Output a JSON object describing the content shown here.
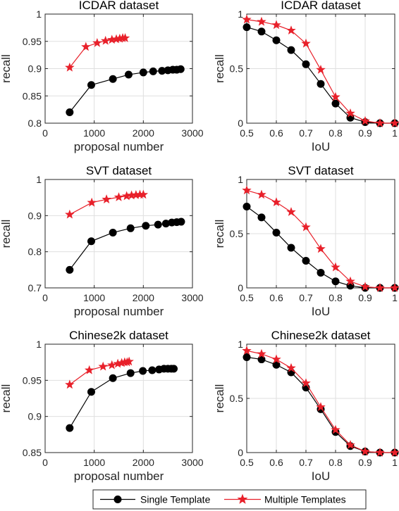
{
  "chart_data": [
    {
      "type": "line",
      "title": "ICDAR dataset",
      "xlabel": "proposal number",
      "ylabel": "recall",
      "xlim": [
        0,
        3000
      ],
      "ylim": [
        0.8,
        1.0
      ],
      "xticks": [
        0,
        1000,
        2000,
        3000
      ],
      "yticks": [
        0.8,
        0.85,
        0.9,
        0.95,
        1.0
      ],
      "xtick_labels": [
        "0",
        "1000",
        "2000",
        "3000"
      ],
      "ytick_labels": [
        "0.8",
        "0.85",
        "0.9",
        "0.95",
        "1"
      ],
      "grid": true,
      "series": [
        {
          "name": "Single Template",
          "color": "#000000",
          "marker": "circle",
          "x": [
            500,
            940,
            1380,
            1700,
            2000,
            2200,
            2380,
            2500,
            2600,
            2680,
            2760
          ],
          "y": [
            0.82,
            0.87,
            0.881,
            0.889,
            0.893,
            0.895,
            0.896,
            0.897,
            0.898,
            0.898,
            0.899
          ]
        },
        {
          "name": "Multiple Templates",
          "color": "#e8202a",
          "marker": "star",
          "x": [
            500,
            830,
            1060,
            1230,
            1360,
            1450,
            1520,
            1580,
            1630
          ],
          "y": [
            0.902,
            0.94,
            0.947,
            0.951,
            0.953,
            0.954,
            0.955,
            0.956,
            0.956
          ]
        }
      ]
    },
    {
      "type": "line",
      "title": "ICDAR dataset",
      "xlabel": "IoU",
      "ylabel": "recall",
      "xlim": [
        0.5,
        1.0
      ],
      "ylim": [
        0,
        1
      ],
      "xticks": [
        0.5,
        0.6,
        0.7,
        0.8,
        0.9,
        1.0
      ],
      "yticks": [
        0,
        0.5,
        1
      ],
      "xtick_labels": [
        "0.5",
        "0.6",
        "0.7",
        "0.8",
        "0.9",
        "1"
      ],
      "ytick_labels": [
        "0",
        "0.5",
        "1"
      ],
      "grid": true,
      "series": [
        {
          "name": "Single Template",
          "color": "#000000",
          "marker": "circle",
          "x": [
            0.5,
            0.55,
            0.6,
            0.65,
            0.7,
            0.75,
            0.8,
            0.85,
            0.9,
            0.95,
            1.0
          ],
          "y": [
            0.88,
            0.84,
            0.76,
            0.67,
            0.54,
            0.36,
            0.18,
            0.05,
            0.01,
            0.0,
            0.0
          ]
        },
        {
          "name": "Multiple Templates",
          "color": "#e8202a",
          "marker": "star",
          "x": [
            0.5,
            0.55,
            0.6,
            0.65,
            0.7,
            0.75,
            0.8,
            0.85,
            0.9,
            0.95,
            1.0
          ],
          "y": [
            0.95,
            0.93,
            0.9,
            0.85,
            0.73,
            0.49,
            0.24,
            0.09,
            0.02,
            0.0,
            0.0
          ]
        }
      ]
    },
    {
      "type": "line",
      "title": "SVT dataset",
      "xlabel": "proposal number",
      "ylabel": "recall",
      "xlim": [
        0,
        3000
      ],
      "ylim": [
        0.7,
        1.0
      ],
      "xticks": [
        0,
        1000,
        2000,
        3000
      ],
      "yticks": [
        0.7,
        0.8,
        0.9,
        1.0
      ],
      "xtick_labels": [
        "0",
        "1000",
        "2000",
        "3000"
      ],
      "ytick_labels": [
        "0.7",
        "0.8",
        "0.9",
        "1"
      ],
      "grid": true,
      "series": [
        {
          "name": "Single Template",
          "color": "#000000",
          "marker": "circle",
          "x": [
            500,
            940,
            1380,
            1740,
            2050,
            2300,
            2460,
            2580,
            2680,
            2770
          ],
          "y": [
            0.75,
            0.829,
            0.853,
            0.865,
            0.872,
            0.875,
            0.878,
            0.881,
            0.882,
            0.883
          ]
        },
        {
          "name": "Multiple Templates",
          "color": "#e8202a",
          "marker": "star",
          "x": [
            500,
            950,
            1250,
            1500,
            1660,
            1760,
            1850,
            1930,
            2000
          ],
          "y": [
            0.903,
            0.936,
            0.945,
            0.951,
            0.954,
            0.956,
            0.957,
            0.958,
            0.958
          ]
        }
      ]
    },
    {
      "type": "line",
      "title": "SVT dataset",
      "xlabel": "IoU",
      "ylabel": "recall",
      "xlim": [
        0.5,
        1.0
      ],
      "ylim": [
        0,
        1
      ],
      "xticks": [
        0.5,
        0.6,
        0.7,
        0.8,
        0.9,
        1.0
      ],
      "yticks": [
        0,
        0.5,
        1
      ],
      "xtick_labels": [
        "0.5",
        "0.6",
        "0.7",
        "0.8",
        "0.9",
        "1"
      ],
      "ytick_labels": [
        "0",
        "0.5",
        "1"
      ],
      "grid": true,
      "series": [
        {
          "name": "Single Template",
          "color": "#000000",
          "marker": "circle",
          "x": [
            0.5,
            0.55,
            0.6,
            0.65,
            0.7,
            0.75,
            0.8,
            0.85,
            0.9,
            0.95,
            1.0
          ],
          "y": [
            0.75,
            0.65,
            0.51,
            0.37,
            0.25,
            0.14,
            0.06,
            0.02,
            0.0,
            0.0,
            0.0
          ]
        },
        {
          "name": "Multiple Templates",
          "color": "#e8202a",
          "marker": "star",
          "x": [
            0.5,
            0.55,
            0.6,
            0.65,
            0.7,
            0.75,
            0.8,
            0.85,
            0.9,
            0.95,
            1.0
          ],
          "y": [
            0.9,
            0.86,
            0.79,
            0.7,
            0.56,
            0.36,
            0.19,
            0.06,
            0.01,
            0.0,
            0.0
          ]
        }
      ]
    },
    {
      "type": "line",
      "title": "Chinese2k dataset",
      "xlabel": "proposal number",
      "ylabel": "recall",
      "xlim": [
        0,
        3000
      ],
      "ylim": [
        0.85,
        1.0
      ],
      "xticks": [
        0,
        1000,
        2000,
        3000
      ],
      "yticks": [
        0.85,
        0.9,
        0.95,
        1.0
      ],
      "xtick_labels": [
        "0",
        "1000",
        "2000",
        "3000"
      ],
      "ytick_labels": [
        "0.85",
        "0.9",
        "0.95",
        "1"
      ],
      "grid": true,
      "series": [
        {
          "name": "Single Template",
          "color": "#000000",
          "marker": "circle",
          "x": [
            500,
            940,
            1380,
            1740,
            1990,
            2180,
            2320,
            2420,
            2500,
            2570,
            2620
          ],
          "y": [
            0.884,
            0.934,
            0.953,
            0.96,
            0.963,
            0.964,
            0.965,
            0.966,
            0.966,
            0.966,
            0.966
          ]
        },
        {
          "name": "Multiple Templates",
          "color": "#e8202a",
          "marker": "star",
          "x": [
            500,
            900,
            1180,
            1360,
            1480,
            1560,
            1620,
            1670,
            1710
          ],
          "y": [
            0.944,
            0.964,
            0.969,
            0.971,
            0.973,
            0.974,
            0.975,
            0.975,
            0.976
          ]
        }
      ]
    },
    {
      "type": "line",
      "title": "Chinese2k dataset",
      "xlabel": "IoU",
      "ylabel": "recall",
      "xlim": [
        0.5,
        1.0
      ],
      "ylim": [
        0,
        1
      ],
      "xticks": [
        0.5,
        0.6,
        0.7,
        0.8,
        0.9,
        1.0
      ],
      "yticks": [
        0,
        0.5,
        1
      ],
      "xtick_labels": [
        "0.5",
        "0.6",
        "0.7",
        "0.8",
        "0.9",
        "1"
      ],
      "ytick_labels": [
        "0",
        "0.5",
        "1"
      ],
      "grid": true,
      "series": [
        {
          "name": "Single Template",
          "color": "#000000",
          "marker": "circle",
          "x": [
            0.5,
            0.55,
            0.6,
            0.65,
            0.7,
            0.75,
            0.8,
            0.85,
            0.9,
            0.95,
            1.0
          ],
          "y": [
            0.88,
            0.86,
            0.81,
            0.74,
            0.6,
            0.4,
            0.19,
            0.06,
            0.01,
            0.0,
            0.0
          ]
        },
        {
          "name": "Multiple Templates",
          "color": "#e8202a",
          "marker": "star",
          "x": [
            0.5,
            0.55,
            0.6,
            0.65,
            0.7,
            0.75,
            0.8,
            0.85,
            0.9,
            0.95,
            1.0
          ],
          "y": [
            0.94,
            0.91,
            0.86,
            0.78,
            0.64,
            0.42,
            0.21,
            0.07,
            0.01,
            0.0,
            0.0
          ]
        }
      ]
    }
  ],
  "legend": {
    "placement": "bottom",
    "items": [
      {
        "label": "Single Template",
        "color": "#000000",
        "marker": "circle"
      },
      {
        "label": "Multiple Templates",
        "color": "#e8202a",
        "marker": "star"
      }
    ]
  }
}
